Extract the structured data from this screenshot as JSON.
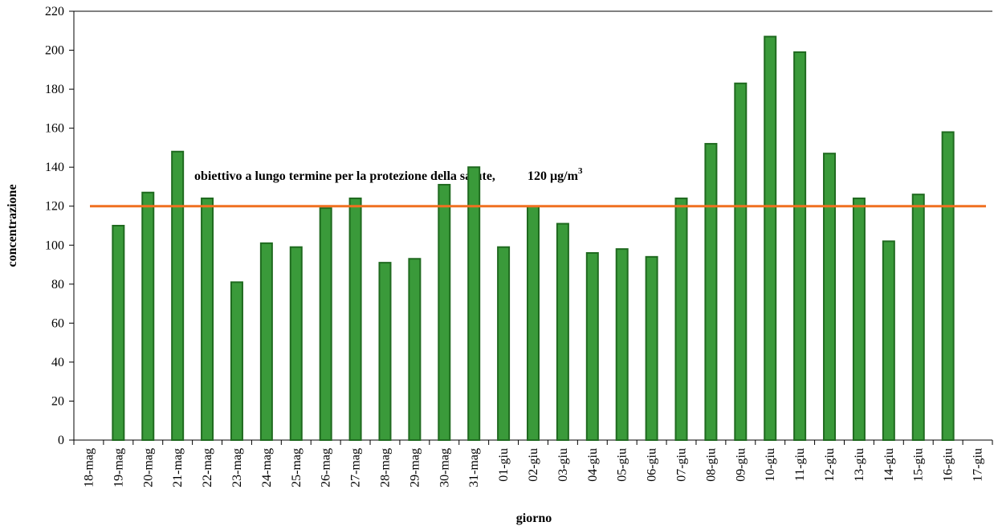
{
  "chart_data": {
    "type": "bar",
    "x_label": "giorno",
    "y_label": "concentrazione",
    "categories": [
      "18-mag",
      "19-mag",
      "20-mag",
      "21-mag",
      "22-mag",
      "23-mag",
      "24-mag",
      "25-mag",
      "26-mag",
      "27-mag",
      "28-mag",
      "29-mag",
      "30-mag",
      "31-mag",
      "01-giu",
      "02-giu",
      "03-giu",
      "04-giu",
      "05-giu",
      "06-giu",
      "07-giu",
      "08-giu",
      "09-giu",
      "10-giu",
      "11-giu",
      "12-giu",
      "13-giu",
      "14-giu",
      "15-giu",
      "16-giu",
      "17-giu"
    ],
    "values": [
      null,
      110,
      127,
      148,
      124,
      81,
      101,
      99,
      119,
      124,
      91,
      93,
      131,
      140,
      99,
      120,
      111,
      96,
      98,
      94,
      124,
      152,
      183,
      207,
      199,
      147,
      124,
      102,
      126,
      158,
      null
    ],
    "color": "#3a9a3a",
    "ylim": [
      0,
      220
    ],
    "yticks": [
      0,
      20,
      40,
      60,
      80,
      100,
      120,
      140,
      160,
      180,
      200,
      220
    ],
    "reference_line": {
      "value": 120,
      "color": "#f07020"
    },
    "annotation": {
      "text": "obiettivo a lungo termine per la protezione della salute,",
      "value_text": "120 µg/m",
      "superscript": "3"
    }
  }
}
